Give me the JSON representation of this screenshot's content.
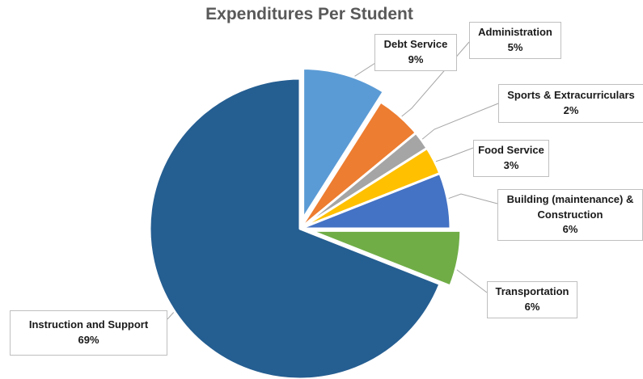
{
  "chart_data": {
    "type": "pie",
    "title": "Expenditures Per Student",
    "slices": [
      {
        "label": "Debt Service",
        "value": 9,
        "value_label": "9%",
        "color": "#5B9BD5",
        "exploded": true
      },
      {
        "label": "Administration",
        "value": 5,
        "value_label": "5%",
        "color": "#ED7D31",
        "exploded": false
      },
      {
        "label": "Sports & Extracurriculars",
        "value": 2,
        "value_label": "2%",
        "color": "#A5A5A5",
        "exploded": false
      },
      {
        "label": "Food Service",
        "value": 3,
        "value_label": "3%",
        "color": "#FFC000",
        "exploded": false
      },
      {
        "label": "Building (maintenance) & Construction",
        "label_lines": [
          "Building (maintenance) &",
          "Construction"
        ],
        "value": 6,
        "value_label": "6%",
        "color": "#4472C4",
        "exploded": false
      },
      {
        "label": "Transportation",
        "value": 6,
        "value_label": "6%",
        "color": "#70AD47",
        "exploded": true
      },
      {
        "label": "Instruction and Support",
        "value": 69,
        "value_label": "69%",
        "color": "#255E91",
        "exploded": false
      }
    ],
    "start_angle_deg": 0,
    "direction": "clockwise",
    "legend": "none",
    "data_labels": "callouts with leader lines"
  }
}
